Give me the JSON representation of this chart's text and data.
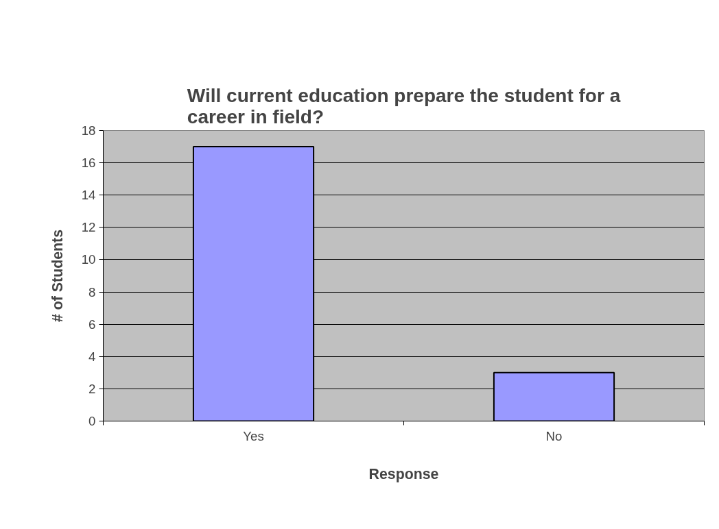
{
  "chart_data": {
    "type": "bar",
    "title": "Will current education prepare the student for a career in field?",
    "xlabel": "Response",
    "ylabel": "# of Students",
    "categories": [
      "Yes",
      "No"
    ],
    "values": [
      17,
      3
    ],
    "color": "#9999ff",
    "ylim": [
      0,
      18
    ],
    "yticks": [
      0,
      2,
      4,
      6,
      8,
      10,
      12,
      14,
      16,
      18
    ],
    "grid": "y"
  }
}
